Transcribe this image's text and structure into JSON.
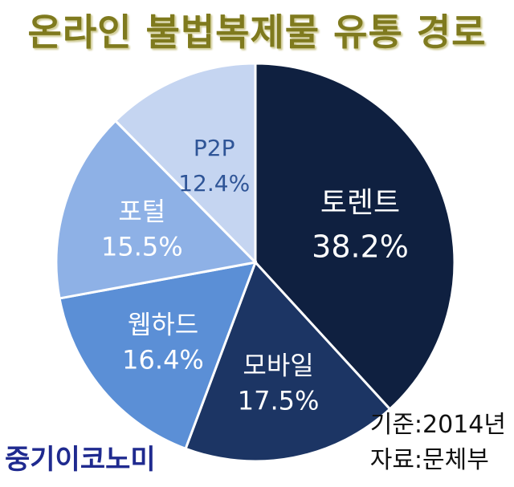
{
  "title": "온라인 불법복제물 유통 경로",
  "chart_data": {
    "type": "pie",
    "title": "온라인 불법복제물 유통 경로",
    "slices": [
      {
        "label": "토렌트",
        "value": 38.2,
        "value_label": "38.2%",
        "color": "#0f2040",
        "text_color": "#ffffff"
      },
      {
        "label": "모바일",
        "value": 17.5,
        "value_label": "17.5%",
        "color": "#1c3564",
        "text_color": "#ffffff"
      },
      {
        "label": "웹하드",
        "value": 16.4,
        "value_label": "16.4%",
        "color": "#5b8fd6",
        "text_color": "#ffffff"
      },
      {
        "label": "포털",
        "value": 15.5,
        "value_label": "15.5%",
        "color": "#8eb1e6",
        "text_color": "#ffffff"
      },
      {
        "label": "P2P",
        "value": 12.4,
        "value_label": "12.4%",
        "color": "#c5d5f1",
        "text_color": "#2f5597"
      }
    ],
    "start_angle_deg": 0,
    "direction": "clockwise"
  },
  "source": {
    "year_line": "기준:2014년",
    "source_line": "자료:문체부"
  },
  "brand": "중기이코노미"
}
